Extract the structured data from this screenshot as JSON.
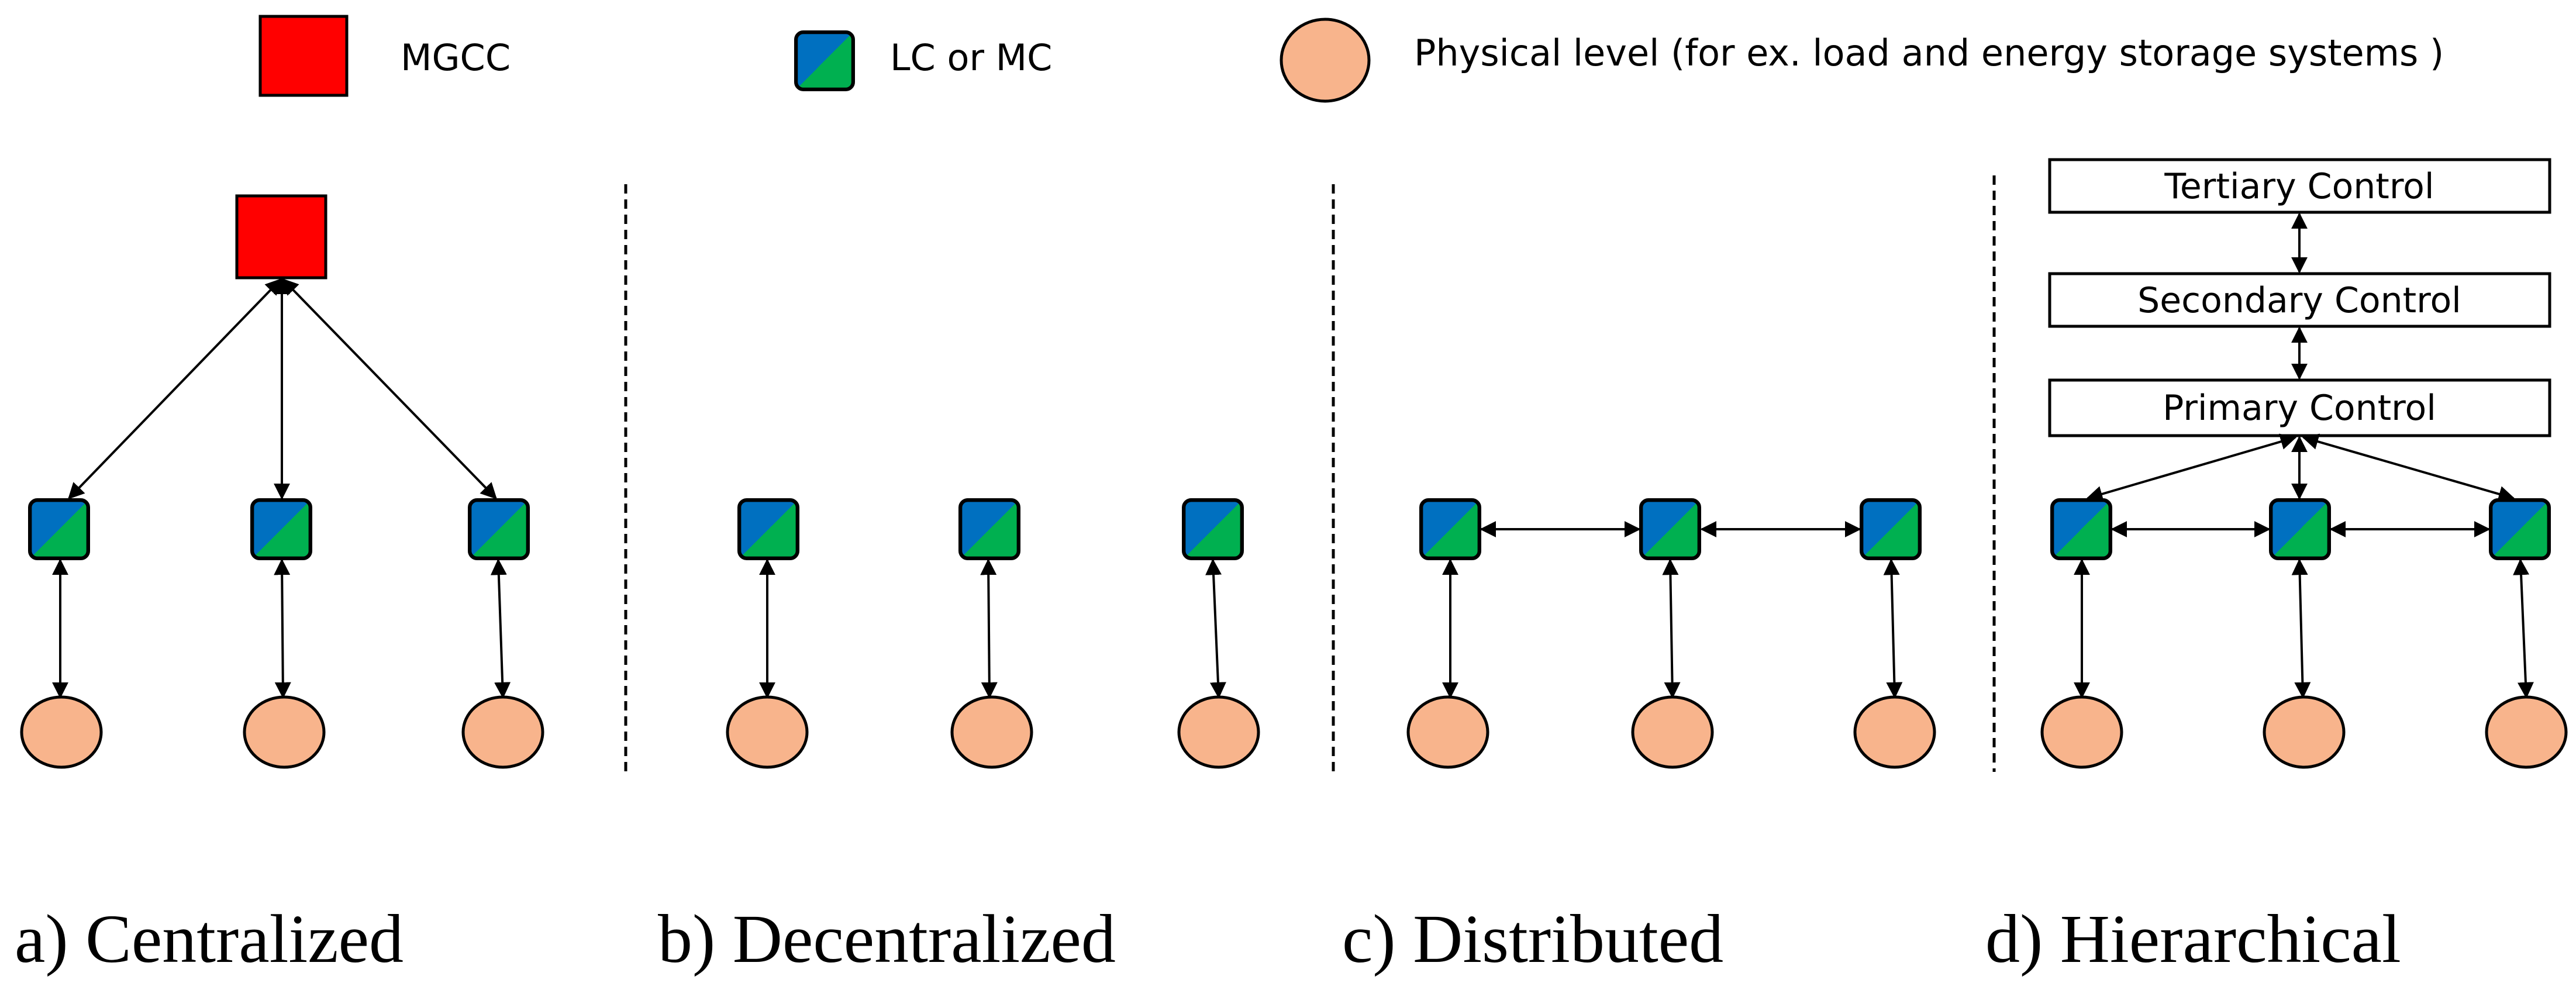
{
  "legend": {
    "mgcc": "MGCC",
    "controller": "LC or MC",
    "physical": "Physical level (for ex. load and energy storage systems )"
  },
  "panels": {
    "a": {
      "caption": "a) Centralized"
    },
    "b": {
      "caption": "b) Decentralized"
    },
    "c": {
      "caption": "c) Distributed"
    },
    "d": {
      "caption": "d) Hierarchical",
      "tertiary": "Tertiary Control",
      "secondary": "Secondary Control",
      "primary": "Primary Control"
    }
  },
  "colors": {
    "mgcc": "#ff0000",
    "controller_blue": "#0070c0",
    "controller_green": "#00b050",
    "physical": "#f8b48c"
  }
}
